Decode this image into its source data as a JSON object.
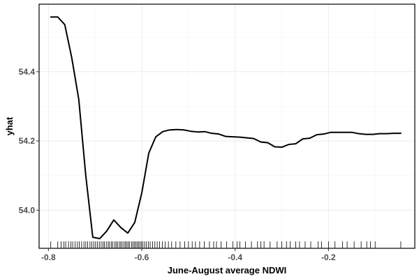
{
  "chart_data": {
    "type": "line",
    "title": "",
    "xlabel": "June-August average NDWI",
    "ylabel": "yhat",
    "xlim": [
      -0.82,
      -0.015
    ],
    "ylim": [
      53.89,
      54.595
    ],
    "x_ticks": [
      -0.8,
      -0.6,
      -0.4,
      -0.2
    ],
    "x_tick_labels": [
      "-0.8",
      "-0.6",
      "-0.4",
      "-0.2"
    ],
    "y_ticks": [
      54.0,
      54.2,
      54.4
    ],
    "y_tick_labels": [
      "54.0",
      "54.2",
      "54.4"
    ],
    "grid": true,
    "legend": "none",
    "line_color": "#000000",
    "grid_color": "#ebebeb",
    "series": [
      {
        "x": [
          -0.795,
          -0.78,
          -0.765,
          -0.75,
          -0.735,
          -0.72,
          -0.705,
          -0.69,
          -0.675,
          -0.66,
          -0.645,
          -0.63,
          -0.615,
          -0.6,
          -0.585,
          -0.57,
          -0.555,
          -0.54,
          -0.525,
          -0.51,
          -0.495,
          -0.48,
          -0.465,
          -0.45,
          -0.435,
          -0.42,
          -0.405,
          -0.39,
          -0.375,
          -0.36,
          -0.345,
          -0.33,
          -0.315,
          -0.3,
          -0.285,
          -0.27,
          -0.255,
          -0.24,
          -0.225,
          -0.21,
          -0.195,
          -0.18,
          -0.165,
          -0.15,
          -0.135,
          -0.12,
          -0.105,
          -0.09,
          -0.075,
          -0.06,
          -0.045
        ],
        "y": [
          54.558,
          54.558,
          54.536,
          54.44,
          54.32,
          54.1,
          53.922,
          53.918,
          53.94,
          53.972,
          53.95,
          53.934,
          53.965,
          54.05,
          54.165,
          54.212,
          54.227,
          54.232,
          54.233,
          54.232,
          54.228,
          54.226,
          54.227,
          54.222,
          54.22,
          54.213,
          54.212,
          54.211,
          54.209,
          54.207,
          54.197,
          54.195,
          54.183,
          54.182,
          54.19,
          54.192,
          54.206,
          54.208,
          54.218,
          54.22,
          54.225,
          54.225,
          54.225,
          54.225,
          54.221,
          54.219,
          54.219,
          54.221,
          54.221,
          54.222,
          54.222
        ]
      }
    ],
    "rug_x": [
      -0.795,
      -0.78,
      -0.773,
      -0.767,
      -0.763,
      -0.757,
      -0.752,
      -0.748,
      -0.743,
      -0.738,
      -0.734,
      -0.729,
      -0.724,
      -0.72,
      -0.716,
      -0.711,
      -0.707,
      -0.703,
      -0.699,
      -0.695,
      -0.691,
      -0.687,
      -0.683,
      -0.68,
      -0.676,
      -0.672,
      -0.669,
      -0.665,
      -0.662,
      -0.658,
      -0.655,
      -0.652,
      -0.648,
      -0.645,
      -0.642,
      -0.638,
      -0.635,
      -0.632,
      -0.629,
      -0.626,
      -0.622,
      -0.619,
      -0.616,
      -0.613,
      -0.61,
      -0.607,
      -0.604,
      -0.601,
      -0.598,
      -0.594,
      -0.59,
      -0.586,
      -0.582,
      -0.577,
      -0.572,
      -0.567,
      -0.562,
      -0.556,
      -0.55,
      -0.543,
      -0.536,
      -0.527,
      -0.518,
      -0.508,
      -0.5,
      -0.492,
      -0.485,
      -0.476,
      -0.466,
      -0.455,
      -0.446,
      -0.44,
      -0.43,
      -0.418,
      -0.405,
      -0.396,
      -0.39,
      -0.378,
      -0.365,
      -0.352,
      -0.345,
      -0.338,
      -0.325,
      -0.31,
      -0.3,
      -0.29,
      -0.282,
      -0.27,
      -0.262,
      -0.25,
      -0.238,
      -0.222,
      -0.215,
      -0.2,
      -0.186,
      -0.17,
      -0.16,
      -0.145,
      -0.13,
      -0.118,
      -0.11,
      -0.1,
      -0.045
    ]
  }
}
